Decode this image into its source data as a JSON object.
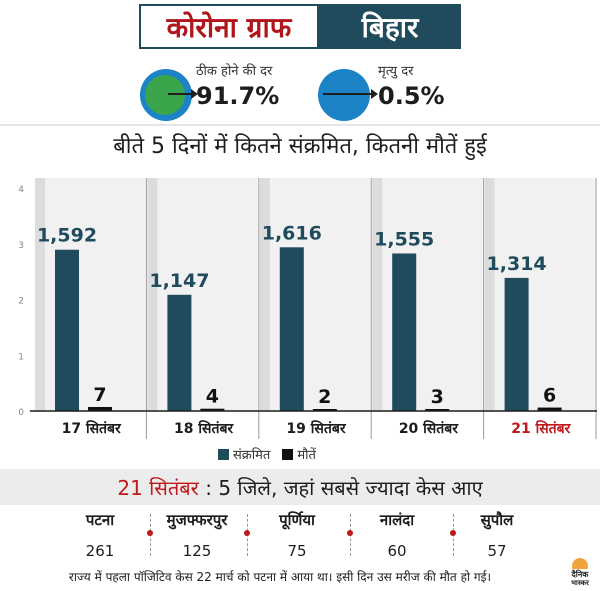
{
  "header": {
    "title_left": "कोरोना ग्राफ",
    "title_right": "बिहार"
  },
  "stats": {
    "recovery": {
      "label": "ठीक होने की दर",
      "value": "91.7%"
    },
    "mortality": {
      "label": "मृत्यु दर",
      "value": "0.5%"
    }
  },
  "colors": {
    "cases": "#1f4b5c",
    "deaths": "#111111",
    "highlight": "#c0191d",
    "brand_bg": "#1f4b5c"
  },
  "chart_data": {
    "type": "bar",
    "title": "बीते 5 दिनों में कितने संक्रमित, कितनी मौतें हुई",
    "categories": [
      "17 सितंबर",
      "18 सितंबर",
      "19 सितंबर",
      "20 सितंबर",
      "21 सितंबर"
    ],
    "highlight_category": "21 सितंबर",
    "series": [
      {
        "name": "संक्रमित",
        "values": [
          1592,
          1147,
          1616,
          1555,
          1314
        ],
        "labels": [
          "1,592",
          "1,147",
          "1,616",
          "1,555",
          "1,314"
        ]
      },
      {
        "name": "मौतें",
        "values": [
          7,
          4,
          2,
          3,
          6
        ],
        "labels": [
          "7",
          "4",
          "2",
          "3",
          "6"
        ]
      }
    ],
    "y_ticks": [
      "0",
      "1",
      "2",
      "3",
      "4"
    ],
    "legend_position": "bottom"
  },
  "districts": {
    "heading_date": "21 सितंबर",
    "heading_text": ": 5 जिले, जहां सबसे ज्यादा केस आए",
    "items": [
      {
        "name": "पटना",
        "count": "261"
      },
      {
        "name": "मुजफ्फरपुर",
        "count": "125"
      },
      {
        "name": "पूर्णिया",
        "count": "75"
      },
      {
        "name": "नालंदा",
        "count": "60"
      },
      {
        "name": "सुपौल",
        "count": "57"
      }
    ]
  },
  "footnote": "राज्य में पहला पॉजिटिव केस 22 मार्च को पटना में आया था। इसी दिन उस मरीज की मौत हो गई।",
  "brand": {
    "line1": "दैनिक",
    "line2": "भास्कर"
  }
}
